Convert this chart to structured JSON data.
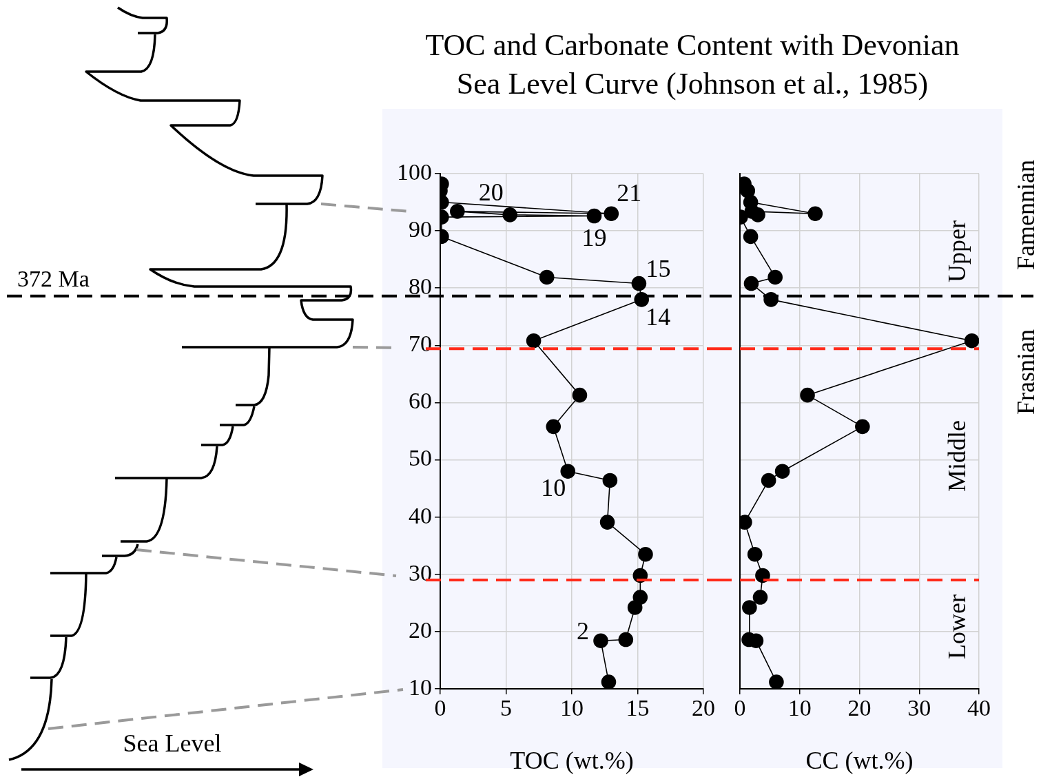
{
  "chart_data": [
    {
      "type": "line",
      "title": "TOC and Carbonate Content with Devonian Sea Level Curve (Johnson et al., 1985)",
      "xlabel": "TOC (wt.%)",
      "color": "#000000",
      "marker": "circle",
      "x": [
        12.8,
        12.2,
        14.1,
        14.8,
        15.2,
        15.2,
        15.6,
        12.7,
        12.9,
        9.7,
        8.6,
        10.6,
        7.1,
        15.3,
        15.1,
        8.1,
        0.1,
        0.1,
        11.7,
        5.3,
        1.3,
        13.0,
        0.1,
        0,
        0.1
      ],
      "values": [
        11.2,
        18.4,
        18.6,
        24.2,
        26.0,
        29.8,
        33.5,
        39.1,
        46.4,
        48.0,
        55.8,
        61.3,
        70.8,
        78.0,
        80.8,
        81.9,
        89.0,
        92.4,
        92.6,
        92.8,
        93.4,
        93.0,
        95.0,
        97.0,
        98.2
      ],
      "xlim": [
        0,
        20
      ],
      "xticks": [
        0,
        5,
        10,
        15,
        20
      ],
      "ylim": [
        10,
        100
      ],
      "yticks": [
        10,
        20,
        30,
        40,
        50,
        60,
        70,
        80,
        90,
        100
      ],
      "grid": true,
      "ref_lines": [
        {
          "axis": "y",
          "value": 78.6,
          "label": "372 Ma",
          "color": "#000000",
          "line_style": "dashed"
        },
        {
          "axis": "y",
          "value": 69.4,
          "color": "#ff2a1a",
          "line_style": "dashed"
        },
        {
          "axis": "y",
          "value": 29.0,
          "color": "#ff2a1a",
          "line_style": "dashed"
        }
      ],
      "annotations": [
        {
          "text": "20",
          "x": 1.3,
          "y": 93.4
        },
        {
          "text": "21",
          "x": 13.0,
          "y": 93.0
        },
        {
          "text": "19",
          "x": 11.7,
          "y": 92.6
        },
        {
          "text": "15",
          "x": 15.1,
          "y": 80.8
        },
        {
          "text": "14",
          "x": 15.3,
          "y": 78.0
        },
        {
          "text": "10",
          "x": 9.7,
          "y": 48.0
        },
        {
          "text": "2",
          "x": 12.2,
          "y": 18.4
        },
        "Sea Level"
      ]
    },
    {
      "type": "line",
      "xlabel": "CC (wt.%)",
      "color": "#000000",
      "marker": "circle",
      "x": [
        6.1,
        2.7,
        1.5,
        1.6,
        3.4,
        3.8,
        2.5,
        0.8,
        4.8,
        7.1,
        20.5,
        11.3,
        38.8,
        5.2,
        1.9,
        5.9,
        1.8,
        0.1,
        1.6,
        3.0,
        2.0,
        12.6,
        1.8,
        1.3,
        0.7
      ],
      "values": [
        11.2,
        18.4,
        18.6,
        24.2,
        26.0,
        29.8,
        33.5,
        39.1,
        46.4,
        48.0,
        55.8,
        61.3,
        70.8,
        78.0,
        80.8,
        81.9,
        89.0,
        92.4,
        null,
        92.8,
        93.4,
        93.0,
        95.0,
        97.0,
        98.2
      ],
      "xlim": [
        0,
        40
      ],
      "xticks": [
        0,
        10,
        20,
        30,
        40
      ],
      "ylim": [
        10,
        100
      ],
      "yticks": [
        10,
        20,
        30,
        40,
        50,
        60,
        70,
        80,
        90,
        100
      ],
      "grid": true,
      "tick_labels": "x",
      "ref_lines": [
        {
          "axis": "y",
          "value": 78.6,
          "color": "#000000",
          "line_style": "dashed"
        },
        {
          "axis": "y",
          "value": 69.4,
          "color": "#ff2a1a",
          "line_style": "dashed"
        },
        {
          "axis": "y",
          "value": 29.0,
          "color": "#ff2a1a",
          "line_style": "dashed"
        }
      ],
      "annotations": [
        "Upper",
        "Middle",
        "Lower",
        "Famennian",
        "Frasnian"
      ]
    }
  ]
}
